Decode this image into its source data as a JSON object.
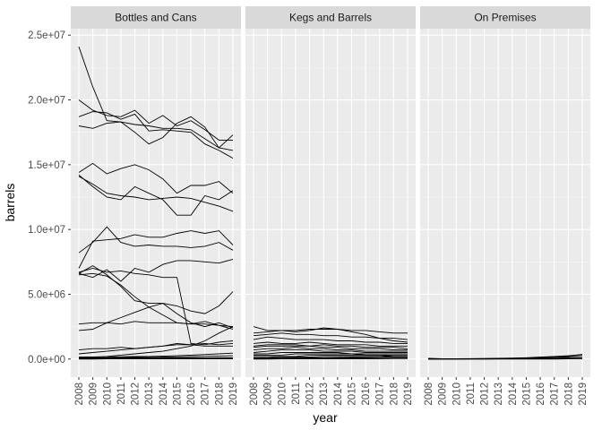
{
  "chart_data": {
    "type": "line",
    "xlabel": "year",
    "ylabel": "barrels",
    "x": [
      2008,
      2009,
      2010,
      2011,
      2012,
      2013,
      2014,
      2015,
      2016,
      2017,
      2018,
      2019
    ],
    "x_ticks": [
      "2008",
      "2009",
      "2010",
      "2011",
      "2012",
      "2013",
      "2014",
      "2015",
      "2016",
      "2017",
      "2018",
      "2019"
    ],
    "ylim": [
      -1400000,
      25500000
    ],
    "y_ticks": [
      0,
      5000000,
      10000000,
      15000000,
      20000000,
      25000000
    ],
    "y_tick_labels": [
      "0.0e+00",
      "5.0e+06",
      "1.0e+07",
      "1.5e+07",
      "2.0e+07",
      "2.5e+07"
    ],
    "grid": true,
    "line_color": "#000000",
    "panel_background": "#ebebeb",
    "strip_background": "#d9d9d9",
    "panels": [
      {
        "name": "Bottles and Cans",
        "series": [
          {
            "values": [
              24100000,
              21000000,
              18400000,
              18300000,
              17500000,
              16600000,
              17100000,
              18200000,
              18700000,
              17900000,
              16300000,
              17300000
            ]
          },
          {
            "values": [
              20000000,
              19200000,
              18800000,
              18700000,
              19200000,
              18200000,
              18800000,
              18000000,
              18400000,
              17700000,
              16900000,
              16900000
            ]
          },
          {
            "values": [
              18700000,
              19100000,
              19000000,
              18500000,
              18900000,
              17600000,
              17700000,
              17600000,
              17500000,
              16600000,
              16100000,
              15500000
            ]
          },
          {
            "values": [
              18000000,
              17800000,
              18200000,
              18300000,
              18100000,
              18000000,
              17800000,
              17800000,
              17700000,
              17000000,
              16300000,
              16100000
            ]
          },
          {
            "values": [
              14400000,
              15100000,
              14300000,
              14700000,
              15000000,
              14600000,
              13900000,
              12800000,
              13400000,
              13400000,
              13700000,
              12800000
            ]
          },
          {
            "values": [
              14200000,
              13300000,
              12500000,
              12300000,
              13300000,
              12800000,
              12300000,
              11100000,
              11100000,
              12600000,
              12300000,
              13000000
            ]
          },
          {
            "values": [
              14100000,
              13500000,
              12800000,
              12600000,
              12500000,
              12300000,
              12400000,
              12500000,
              12400000,
              12100000,
              11800000,
              11400000
            ]
          },
          {
            "values": [
              8200000,
              9000000,
              10200000,
              9000000,
              8700000,
              8800000,
              8700000,
              8700000,
              8600000,
              8700000,
              9000000,
              8400000
            ]
          },
          {
            "values": [
              7000000,
              9100000,
              9200000,
              9300000,
              9600000,
              9400000,
              9400000,
              9700000,
              9900000,
              9700000,
              9900000,
              8800000
            ]
          },
          {
            "values": [
              6700000,
              7000000,
              6700000,
              6800000,
              6600000,
              6500000,
              6300000,
              6300000,
              1200000,
              1100000,
              1300000,
              1400000
            ]
          },
          {
            "values": [
              6600000,
              6300000,
              6900000,
              6000000,
              7000000,
              6700000,
              7300000,
              7600000,
              7600000,
              7500000,
              7400000,
              7700000
            ]
          },
          {
            "values": [
              6600000,
              7200000,
              6500000,
              5600000,
              4500000,
              4300000,
              4300000,
              4100000,
              3700000,
              3500000,
              4100000,
              5200000
            ]
          },
          {
            "values": [
              6500000,
              6600000,
              6400000,
              5700000,
              4800000,
              4000000,
              3400000,
              2800000,
              2700000,
              2900000,
              2600000,
              2300000
            ]
          },
          {
            "values": [
              2700000,
              2800000,
              2800000,
              2700000,
              2900000,
              2800000,
              2800000,
              2800000,
              2700000,
              2700000,
              2600000,
              2500000
            ]
          },
          {
            "values": [
              2200000,
              2300000,
              2800000,
              3200000,
              3600000,
              4000000,
              4300000,
              3500000,
              2800000,
              2500000,
              2800000,
              2400000
            ]
          },
          {
            "values": [
              700000,
              800000,
              800000,
              900000,
              800000,
              900000,
              1000000,
              1100000,
              1100000,
              1200000,
              1100000,
              1200000
            ]
          },
          {
            "values": [
              400000,
              500000,
              600000,
              700000,
              800000,
              900000,
              1000000,
              1200000,
              1100000,
              1000000,
              1000000,
              1000000
            ]
          },
          {
            "values": [
              100000,
              150000,
              200000,
              300000,
              400000,
              500000,
              600000,
              800000,
              1000000,
              1400000,
              2000000,
              2500000
            ]
          },
          {
            "values": [
              150000,
              160000,
              170000,
              180000,
              190000,
              200000,
              220000,
              250000,
              300000,
              350000,
              400000,
              450000
            ]
          },
          {
            "values": [
              80000,
              90000,
              100000,
              110000,
              120000,
              130000,
              150000,
              170000,
              190000,
              210000,
              230000,
              250000
            ]
          },
          {
            "values": [
              50000,
              50000,
              60000,
              60000,
              70000,
              70000,
              80000,
              80000,
              90000,
              90000,
              100000,
              100000
            ]
          },
          {
            "values": [
              30000,
              30000,
              30000,
              40000,
              40000,
              40000,
              50000,
              50000,
              50000,
              60000,
              60000,
              60000
            ]
          },
          {
            "values": [
              0,
              0,
              10000,
              10000,
              10000,
              20000,
              20000,
              20000,
              30000,
              30000,
              30000,
              40000
            ]
          },
          {
            "values": [
              10000,
              10000,
              10000,
              10000,
              10000,
              10000,
              10000,
              10000,
              10000,
              10000,
              10000,
              10000
            ]
          }
        ]
      },
      {
        "name": "Kegs and Barrels",
        "series": [
          {
            "values": [
              2500000,
              2200000,
              2200000,
              2200000,
              2300000,
              2300000,
              2300000,
              2200000,
              2200000,
              2100000,
              2000000,
              2000000
            ]
          },
          {
            "values": [
              2000000,
              2100000,
              2200000,
              2100000,
              2200000,
              2400000,
              2300000,
              2100000,
              1900000,
              1600000,
              1400000,
              1300000
            ]
          },
          {
            "values": [
              1800000,
              1900000,
              2000000,
              1900000,
              1900000,
              1800000,
              1800000,
              1700000,
              1700000,
              1600000,
              1600000,
              1500000
            ]
          },
          {
            "values": [
              1500000,
              1700000,
              1600000,
              1500000,
              1500000,
              1500000,
              1400000,
              1400000,
              1300000,
              1300000,
              1200000,
              1200000
            ]
          },
          {
            "values": [
              1200000,
              1300000,
              1200000,
              1200000,
              1300000,
              1200000,
              1100000,
              1100000,
              1100000,
              1000000,
              1000000,
              1000000
            ]
          },
          {
            "values": [
              1000000,
              1100000,
              1100000,
              1100000,
              1000000,
              1100000,
              1000000,
              1000000,
              900000,
              900000,
              900000,
              800000
            ]
          },
          {
            "values": [
              900000,
              1000000,
              1000000,
              1000000,
              1000000,
              900000,
              900000,
              800000,
              800000,
              800000,
              700000,
              700000
            ]
          },
          {
            "values": [
              700000,
              800000,
              800000,
              900000,
              800000,
              800000,
              700000,
              700000,
              600000,
              600000,
              600000,
              600000
            ]
          },
          {
            "values": [
              500000,
              600000,
              700000,
              700000,
              700000,
              600000,
              600000,
              600000,
              500000,
              500000,
              500000,
              500000
            ]
          },
          {
            "values": [
              400000,
              400000,
              500000,
              500000,
              500000,
              500000,
              500000,
              400000,
              400000,
              400000,
              400000,
              400000
            ]
          },
          {
            "values": [
              300000,
              300000,
              300000,
              400000,
              400000,
              400000,
              400000,
              400000,
              300000,
              300000,
              300000,
              300000
            ]
          },
          {
            "values": [
              200000,
              200000,
              200000,
              200000,
              300000,
              300000,
              300000,
              300000,
              300000,
              300000,
              200000,
              200000
            ]
          },
          {
            "values": [
              100000,
              100000,
              150000,
              150000,
              150000,
              200000,
              200000,
              200000,
              200000,
              200000,
              200000,
              200000
            ]
          },
          {
            "values": [
              50000,
              60000,
              70000,
              80000,
              90000,
              100000,
              110000,
              120000,
              130000,
              140000,
              150000,
              150000
            ]
          },
          {
            "values": [
              20000,
              20000,
              30000,
              30000,
              40000,
              40000,
              50000,
              50000,
              60000,
              60000,
              70000,
              70000
            ]
          },
          {
            "values": [
              0,
              0,
              10000,
              10000,
              10000,
              10000,
              20000,
              20000,
              20000,
              20000,
              30000,
              30000
            ]
          }
        ]
      },
      {
        "name": "On Premises",
        "series": [
          {
            "values": [
              50000,
              20000,
              20000,
              20000,
              20000,
              20000,
              30000,
              50000,
              100000,
              150000,
              200000,
              300000
            ]
          },
          {
            "values": [
              10000,
              10000,
              20000,
              30000,
              40000,
              50000,
              70000,
              100000,
              150000,
              200000,
              250000,
              350000
            ]
          },
          {
            "values": [
              0,
              10000,
              10000,
              20000,
              30000,
              40000,
              50000,
              70000,
              90000,
              110000,
              130000,
              150000
            ]
          },
          {
            "values": [
              0,
              0,
              0,
              10000,
              10000,
              10000,
              20000,
              20000,
              30000,
              40000,
              50000,
              60000
            ]
          },
          {
            "values": [
              0,
              0,
              0,
              0,
              0,
              10000,
              10000,
              10000,
              10000,
              20000,
              20000,
              20000
            ]
          },
          {
            "values": [
              0,
              0,
              0,
              0,
              0,
              0,
              0,
              0,
              0,
              0,
              10000,
              10000
            ]
          }
        ]
      }
    ]
  }
}
